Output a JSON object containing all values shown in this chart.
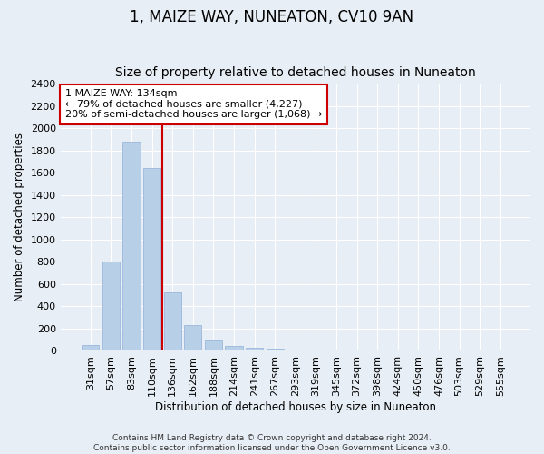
{
  "title": "1, MAIZE WAY, NUNEATON, CV10 9AN",
  "subtitle": "Size of property relative to detached houses in Nuneaton",
  "xlabel": "Distribution of detached houses by size in Nuneaton",
  "ylabel": "Number of detached properties",
  "categories": [
    "31sqm",
    "57sqm",
    "83sqm",
    "110sqm",
    "136sqm",
    "162sqm",
    "188sqm",
    "214sqm",
    "241sqm",
    "267sqm",
    "293sqm",
    "319sqm",
    "345sqm",
    "372sqm",
    "398sqm",
    "424sqm",
    "450sqm",
    "476sqm",
    "503sqm",
    "529sqm",
    "555sqm"
  ],
  "values": [
    50,
    800,
    1880,
    1645,
    530,
    235,
    105,
    47,
    27,
    18,
    0,
    0,
    0,
    0,
    0,
    0,
    0,
    0,
    0,
    0,
    0
  ],
  "bar_color": "#b8cfe8",
  "bar_edgecolor": "#90b0d8",
  "vline_x": 3.5,
  "vline_color": "#cc0000",
  "annotation_text": "1 MAIZE WAY: 134sqm\n← 79% of detached houses are smaller (4,227)\n20% of semi-detached houses are larger (1,068) →",
  "annotation_box_edgecolor": "#cc0000",
  "annotation_box_facecolor": "#ffffff",
  "ylim": [
    0,
    2400
  ],
  "yticks": [
    0,
    200,
    400,
    600,
    800,
    1000,
    1200,
    1400,
    1600,
    1800,
    2000,
    2200,
    2400
  ],
  "title_fontsize": 12,
  "subtitle_fontsize": 10,
  "axis_label_fontsize": 8.5,
  "tick_fontsize": 8,
  "annotation_fontsize": 8,
  "footer_text": "Contains HM Land Registry data © Crown copyright and database right 2024.\nContains public sector information licensed under the Open Government Licence v3.0.",
  "background_color": "#e8eef5",
  "plot_bg_color": "#e8eef5"
}
